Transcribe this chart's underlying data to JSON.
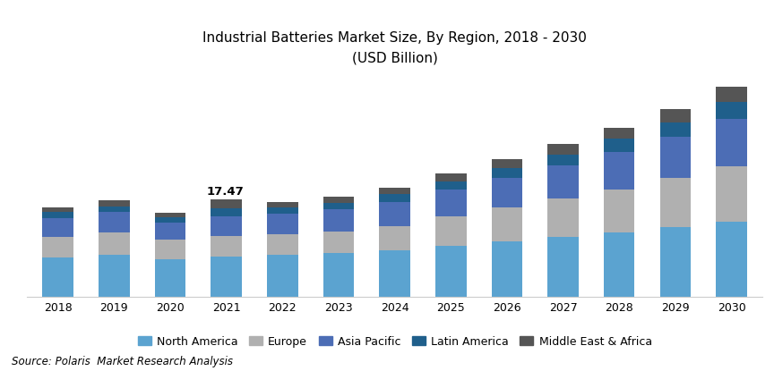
{
  "title_line1": "Industrial Batteries Market Size, By Region, 2018 - 2030",
  "title_line2": "(USD Billion)",
  "source": "Source: Polaris  Market Research Analysis",
  "years": [
    2018,
    2019,
    2020,
    2021,
    2022,
    2023,
    2024,
    2025,
    2026,
    2027,
    2028,
    2029,
    2030
  ],
  "regions": [
    "North America",
    "Europe",
    "Asia Pacific",
    "Latin America",
    "Middle East & Africa"
  ],
  "colors": [
    "#5BA3D0",
    "#B0B0B0",
    "#4C6DB5",
    "#1F5F8B",
    "#555555"
  ],
  "data": {
    "North America": [
      7.0,
      7.5,
      6.8,
      7.2,
      7.5,
      7.8,
      8.3,
      9.2,
      10.0,
      10.8,
      11.5,
      12.5,
      13.5
    ],
    "Europe": [
      3.8,
      4.1,
      3.5,
      3.7,
      3.8,
      4.0,
      4.4,
      5.2,
      6.0,
      6.8,
      7.8,
      8.8,
      10.0
    ],
    "Asia Pacific": [
      3.4,
      3.6,
      3.1,
      3.5,
      3.6,
      3.9,
      4.3,
      4.8,
      5.4,
      6.0,
      6.8,
      7.5,
      8.5
    ],
    "Latin America": [
      1.0,
      1.1,
      0.9,
      1.5,
      1.1,
      1.2,
      1.4,
      1.6,
      1.8,
      2.0,
      2.3,
      2.6,
      3.0
    ],
    "Middle East & Africa": [
      0.9,
      1.0,
      0.8,
      1.57,
      1.0,
      1.1,
      1.2,
      1.4,
      1.6,
      1.8,
      2.0,
      2.3,
      2.7
    ]
  },
  "annotation_year": 2021,
  "annotation_text": "17.47",
  "ylim": [
    0,
    40
  ],
  "background_color": "#ffffff",
  "title_fontsize": 11,
  "axis_fontsize": 9,
  "source_fontsize": 8.5
}
